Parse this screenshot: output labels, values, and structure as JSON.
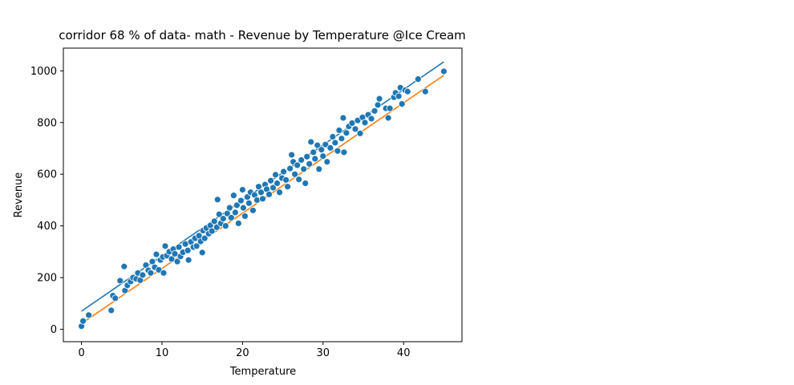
{
  "chart_data": {
    "type": "scatter",
    "title": "corridor 68 % of data- math - Revenue by Temperature @Ice Cream",
    "xlabel": "Temperature",
    "ylabel": "Revenue",
    "xlim": [
      -2.25,
      47.25
    ],
    "ylim": [
      -48,
      1088
    ],
    "xticks": [
      0,
      10,
      20,
      30,
      40
    ],
    "yticks": [
      0,
      200,
      400,
      600,
      800,
      1000
    ],
    "grid": false,
    "legend": "none",
    "colors": {
      "points": "#1f77b4",
      "upper_line": "#1f77b4",
      "lower_line": "#ff7f0e",
      "point_edge": "#ffffff"
    },
    "lines": [
      {
        "x": [
          0,
          45
        ],
        "y": [
          70,
          1035
        ]
      },
      {
        "x": [
          0,
          45
        ],
        "y": [
          22,
          983
        ]
      }
    ],
    "series": [
      {
        "points": [
          [
            0.0,
            12
          ],
          [
            0.2,
            32
          ],
          [
            0.9,
            55
          ],
          [
            3.7,
            73
          ],
          [
            3.9,
            130
          ],
          [
            4.2,
            120
          ],
          [
            4.8,
            188
          ],
          [
            5.3,
            243
          ],
          [
            5.4,
            150
          ],
          [
            5.7,
            170
          ],
          [
            6.1,
            185
          ],
          [
            6.4,
            200
          ],
          [
            6.8,
            195
          ],
          [
            7.0,
            218
          ],
          [
            7.3,
            190
          ],
          [
            7.6,
            210
          ],
          [
            8.0,
            248
          ],
          [
            8.3,
            228
          ],
          [
            8.6,
            218
          ],
          [
            8.8,
            262
          ],
          [
            9.1,
            240
          ],
          [
            9.3,
            290
          ],
          [
            9.6,
            230
          ],
          [
            9.8,
            268
          ],
          [
            10.1,
            280
          ],
          [
            10.2,
            218
          ],
          [
            10.4,
            322
          ],
          [
            10.6,
            285
          ],
          [
            10.9,
            300
          ],
          [
            11.2,
            272
          ],
          [
            11.4,
            310
          ],
          [
            11.6,
            292
          ],
          [
            11.9,
            262
          ],
          [
            12.1,
            318
          ],
          [
            12.3,
            282
          ],
          [
            12.6,
            298
          ],
          [
            12.9,
            330
          ],
          [
            13.2,
            305
          ],
          [
            13.3,
            268
          ],
          [
            13.6,
            338
          ],
          [
            13.9,
            318
          ],
          [
            14.1,
            352
          ],
          [
            14.3,
            322
          ],
          [
            14.6,
            362
          ],
          [
            14.8,
            340
          ],
          [
            15.0,
            297
          ],
          [
            15.1,
            382
          ],
          [
            15.3,
            352
          ],
          [
            15.5,
            392
          ],
          [
            15.8,
            370
          ],
          [
            16.0,
            402
          ],
          [
            16.2,
            380
          ],
          [
            16.5,
            418
          ],
          [
            16.8,
            395
          ],
          [
            16.9,
            502
          ],
          [
            17.1,
            445
          ],
          [
            17.3,
            410
          ],
          [
            17.6,
            428
          ],
          [
            17.9,
            400
          ],
          [
            18.1,
            448
          ],
          [
            18.4,
            470
          ],
          [
            18.6,
            432
          ],
          [
            18.9,
            518
          ],
          [
            19.1,
            452
          ],
          [
            19.3,
            480
          ],
          [
            19.5,
            410
          ],
          [
            19.8,
            498
          ],
          [
            20.0,
            540
          ],
          [
            20.1,
            470
          ],
          [
            20.3,
            438
          ],
          [
            20.6,
            512
          ],
          [
            20.8,
            488
          ],
          [
            21.0,
            530
          ],
          [
            21.3,
            460
          ],
          [
            21.5,
            520
          ],
          [
            21.8,
            500
          ],
          [
            22.0,
            552
          ],
          [
            22.3,
            530
          ],
          [
            22.5,
            505
          ],
          [
            22.8,
            560
          ],
          [
            23.0,
            542
          ],
          [
            23.3,
            522
          ],
          [
            23.5,
            575
          ],
          [
            23.8,
            548
          ],
          [
            24.1,
            598
          ],
          [
            24.3,
            565
          ],
          [
            24.6,
            530
          ],
          [
            24.9,
            585
          ],
          [
            25.1,
            610
          ],
          [
            25.4,
            578
          ],
          [
            25.6,
            552
          ],
          [
            25.9,
            622
          ],
          [
            26.1,
            675
          ],
          [
            26.3,
            648
          ],
          [
            26.5,
            600
          ],
          [
            26.8,
            635
          ],
          [
            27.0,
            580
          ],
          [
            27.3,
            655
          ],
          [
            27.6,
            620
          ],
          [
            27.8,
            565
          ],
          [
            28.0,
            668
          ],
          [
            28.3,
            640
          ],
          [
            28.5,
            725
          ],
          [
            28.8,
            685
          ],
          [
            29.0,
            660
          ],
          [
            29.3,
            712
          ],
          [
            29.5,
            620
          ],
          [
            29.8,
            695
          ],
          [
            30.0,
            670
          ],
          [
            30.3,
            715
          ],
          [
            30.5,
            648
          ],
          [
            30.9,
            702
          ],
          [
            31.2,
            745
          ],
          [
            31.5,
            722
          ],
          [
            31.8,
            690
          ],
          [
            32.0,
            770
          ],
          [
            32.3,
            738
          ],
          [
            32.5,
            818
          ],
          [
            32.6,
            685
          ],
          [
            32.9,
            760
          ],
          [
            33.2,
            785
          ],
          [
            33.6,
            798
          ],
          [
            34.0,
            775
          ],
          [
            34.3,
            808
          ],
          [
            34.6,
            758
          ],
          [
            34.9,
            820
          ],
          [
            35.2,
            800
          ],
          [
            35.6,
            830
          ],
          [
            36.0,
            815
          ],
          [
            36.4,
            845
          ],
          [
            36.8,
            868
          ],
          [
            37.0,
            892
          ],
          [
            37.8,
            855
          ],
          [
            38.1,
            818
          ],
          [
            38.3,
            855
          ],
          [
            38.8,
            898
          ],
          [
            39.0,
            915
          ],
          [
            39.4,
            902
          ],
          [
            39.6,
            935
          ],
          [
            39.8,
            872
          ],
          [
            40.2,
            925
          ],
          [
            40.5,
            920
          ],
          [
            41.8,
            968
          ],
          [
            42.7,
            920
          ],
          [
            45.0,
            998
          ]
        ]
      }
    ]
  }
}
